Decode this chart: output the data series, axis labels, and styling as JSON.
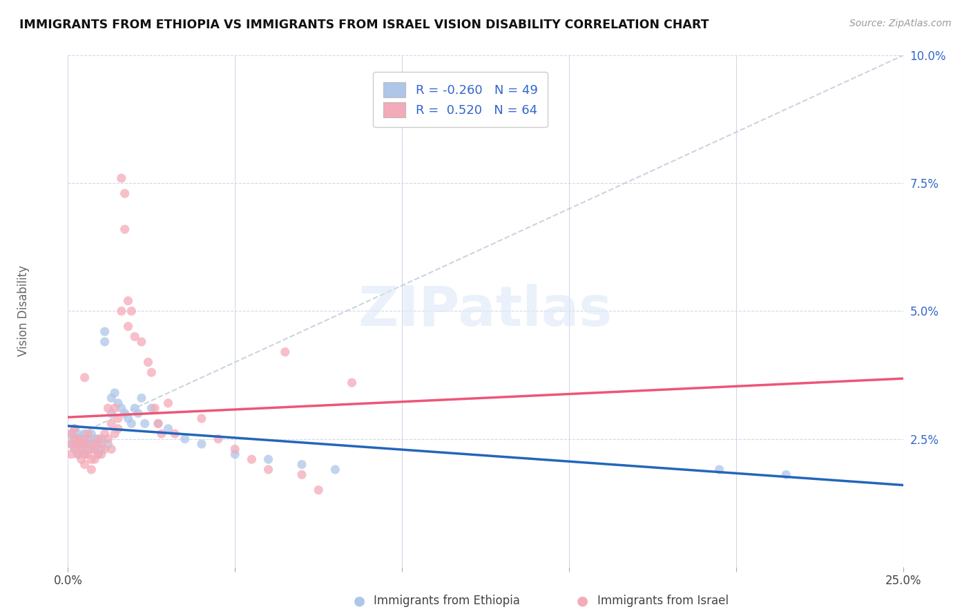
{
  "title": "IMMIGRANTS FROM ETHIOPIA VS IMMIGRANTS FROM ISRAEL VISION DISABILITY CORRELATION CHART",
  "source": "Source: ZipAtlas.com",
  "ylabel": "Vision Disability",
  "watermark": "ZIPatlas",
  "ethiopia_R": -0.26,
  "ethiopia_N": 49,
  "israel_R": 0.52,
  "israel_N": 64,
  "ethiopia_color": "#aec6e8",
  "israel_color": "#f4aab8",
  "ethiopia_line_color": "#2266bb",
  "israel_line_color": "#ee5577",
  "xlim": [
    0.0,
    0.25
  ],
  "ylim": [
    0.0,
    0.1
  ],
  "ethiopia_scatter": [
    [
      0.001,
      0.026
    ],
    [
      0.001,
      0.024
    ],
    [
      0.002,
      0.025
    ],
    [
      0.002,
      0.023
    ],
    [
      0.002,
      0.027
    ],
    [
      0.003,
      0.024
    ],
    [
      0.003,
      0.026
    ],
    [
      0.003,
      0.022
    ],
    [
      0.004,
      0.025
    ],
    [
      0.004,
      0.023
    ],
    [
      0.005,
      0.026
    ],
    [
      0.005,
      0.024
    ],
    [
      0.005,
      0.022
    ],
    [
      0.006,
      0.025
    ],
    [
      0.006,
      0.023
    ],
    [
      0.007,
      0.024
    ],
    [
      0.007,
      0.026
    ],
    [
      0.008,
      0.023
    ],
    [
      0.008,
      0.025
    ],
    [
      0.009,
      0.024
    ],
    [
      0.009,
      0.022
    ],
    [
      0.01,
      0.025
    ],
    [
      0.01,
      0.023
    ],
    [
      0.011,
      0.046
    ],
    [
      0.011,
      0.044
    ],
    [
      0.012,
      0.024
    ],
    [
      0.013,
      0.033
    ],
    [
      0.013,
      0.03
    ],
    [
      0.014,
      0.034
    ],
    [
      0.015,
      0.032
    ],
    [
      0.016,
      0.031
    ],
    [
      0.017,
      0.03
    ],
    [
      0.018,
      0.029
    ],
    [
      0.019,
      0.028
    ],
    [
      0.02,
      0.031
    ],
    [
      0.021,
      0.03
    ],
    [
      0.022,
      0.033
    ],
    [
      0.023,
      0.028
    ],
    [
      0.025,
      0.031
    ],
    [
      0.027,
      0.028
    ],
    [
      0.03,
      0.027
    ],
    [
      0.035,
      0.025
    ],
    [
      0.04,
      0.024
    ],
    [
      0.05,
      0.022
    ],
    [
      0.06,
      0.021
    ],
    [
      0.07,
      0.02
    ],
    [
      0.08,
      0.019
    ],
    [
      0.195,
      0.019
    ],
    [
      0.215,
      0.018
    ]
  ],
  "israel_scatter": [
    [
      0.001,
      0.026
    ],
    [
      0.001,
      0.024
    ],
    [
      0.001,
      0.022
    ],
    [
      0.002,
      0.025
    ],
    [
      0.002,
      0.023
    ],
    [
      0.002,
      0.027
    ],
    [
      0.003,
      0.025
    ],
    [
      0.003,
      0.022
    ],
    [
      0.003,
      0.024
    ],
    [
      0.004,
      0.021
    ],
    [
      0.004,
      0.024
    ],
    [
      0.004,
      0.023
    ],
    [
      0.005,
      0.025
    ],
    [
      0.005,
      0.022
    ],
    [
      0.005,
      0.02
    ],
    [
      0.005,
      0.037
    ],
    [
      0.006,
      0.024
    ],
    [
      0.006,
      0.026
    ],
    [
      0.006,
      0.022
    ],
    [
      0.007,
      0.023
    ],
    [
      0.007,
      0.021
    ],
    [
      0.007,
      0.019
    ],
    [
      0.008,
      0.023
    ],
    [
      0.008,
      0.021
    ],
    [
      0.008,
      0.024
    ],
    [
      0.009,
      0.022
    ],
    [
      0.009,
      0.025
    ],
    [
      0.01,
      0.024
    ],
    [
      0.01,
      0.022
    ],
    [
      0.011,
      0.026
    ],
    [
      0.011,
      0.023
    ],
    [
      0.012,
      0.025
    ],
    [
      0.012,
      0.031
    ],
    [
      0.013,
      0.028
    ],
    [
      0.013,
      0.023
    ],
    [
      0.014,
      0.026
    ],
    [
      0.014,
      0.031
    ],
    [
      0.015,
      0.029
    ],
    [
      0.015,
      0.027
    ],
    [
      0.016,
      0.05
    ],
    [
      0.016,
      0.076
    ],
    [
      0.017,
      0.066
    ],
    [
      0.017,
      0.073
    ],
    [
      0.018,
      0.052
    ],
    [
      0.018,
      0.047
    ],
    [
      0.019,
      0.05
    ],
    [
      0.02,
      0.045
    ],
    [
      0.022,
      0.044
    ],
    [
      0.024,
      0.04
    ],
    [
      0.025,
      0.038
    ],
    [
      0.026,
      0.031
    ],
    [
      0.027,
      0.028
    ],
    [
      0.028,
      0.026
    ],
    [
      0.03,
      0.032
    ],
    [
      0.032,
      0.026
    ],
    [
      0.04,
      0.029
    ],
    [
      0.045,
      0.025
    ],
    [
      0.05,
      0.023
    ],
    [
      0.055,
      0.021
    ],
    [
      0.06,
      0.019
    ],
    [
      0.065,
      0.042
    ],
    [
      0.07,
      0.018
    ],
    [
      0.075,
      0.015
    ],
    [
      0.085,
      0.036
    ]
  ]
}
